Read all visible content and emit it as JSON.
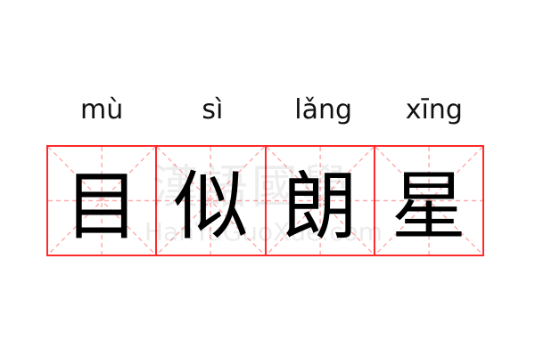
{
  "words": [
    {
      "pinyin": "mù",
      "hanzi": "目"
    },
    {
      "pinyin": "sì",
      "hanzi": "似"
    },
    {
      "pinyin": "lǎng",
      "hanzi": "朗"
    },
    {
      "pinyin": "xīng",
      "hanzi": "星"
    }
  ],
  "watermark": {
    "chinese": "漢語國學",
    "latin": "HanYuGuoXue.com"
  },
  "colors": {
    "grid": "#ff2a2a",
    "guide": "#ffaaaa",
    "text": "#000000"
  }
}
